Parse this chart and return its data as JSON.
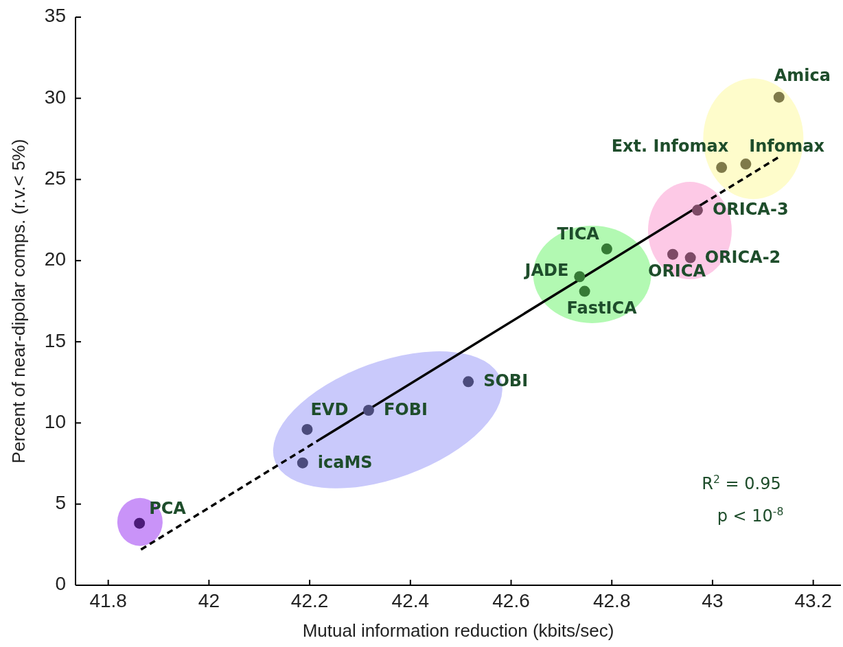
{
  "chart_data": {
    "type": "scatter",
    "xlabel": "Mutual information reduction (kbits/sec)",
    "ylabel": "Percent of near-dipolar comps. (r.v.< 5%)",
    "xlim": [
      41.735,
      43.255
    ],
    "xticks": [
      41.8,
      42,
      42.2,
      42.4,
      42.6,
      42.8,
      43,
      43.2
    ],
    "ylim": [
      0,
      35
    ],
    "yticks": [
      0,
      5,
      10,
      15,
      20,
      25,
      30,
      35
    ],
    "marker": "circle",
    "annotations": [
      "R$^{2}$ = 0.95",
      "p < 10$^{-8}$"
    ],
    "series": [
      {
        "name": "PCA",
        "color": "#4b1a78",
        "x": [
          41.862
        ],
        "values": [
          3.82
        ]
      },
      {
        "name": "EVD",
        "color": "#4b4b7c",
        "x": [
          42.195
        ],
        "values": [
          9.6
        ]
      },
      {
        "name": "FOBI",
        "color": "#4b4b7c",
        "x": [
          42.317
        ],
        "values": [
          10.78
        ]
      },
      {
        "name": "icaMS",
        "color": "#4b4b7c",
        "x": [
          42.186
        ],
        "values": [
          7.54
        ]
      },
      {
        "name": "SOBI",
        "color": "#4b4b7c",
        "x": [
          42.515
        ],
        "values": [
          12.54
        ]
      },
      {
        "name": "TICA",
        "color": "#357a35",
        "x": [
          42.79
        ],
        "values": [
          20.72
        ]
      },
      {
        "name": "JADE",
        "color": "#357a35",
        "x": [
          42.736
        ],
        "values": [
          19.01
        ]
      },
      {
        "name": "FastICA",
        "color": "#357a35",
        "x": [
          42.746
        ],
        "values": [
          18.11
        ]
      },
      {
        "name": "ORICA",
        "color": "#7d4a66",
        "x": [
          42.921
        ],
        "values": [
          20.39
        ]
      },
      {
        "name": "ORICA-2",
        "color": "#7d4a66",
        "x": [
          42.956
        ],
        "values": [
          20.18
        ]
      },
      {
        "name": "ORICA-3",
        "color": "#7d4a66",
        "x": [
          42.97
        ],
        "values": [
          23.11
        ]
      },
      {
        "name": "Ext. Infomax",
        "color": "#7f7a4a",
        "x": [
          43.018
        ],
        "values": [
          25.74
        ]
      },
      {
        "name": "Infomax",
        "color": "#7f7a4a",
        "x": [
          43.066
        ],
        "values": [
          25.95
        ]
      },
      {
        "name": "Amica",
        "color": "#7f7a4a",
        "x": [
          43.132
        ],
        "values": [
          30.07
        ]
      },
      {
        "type": "line",
        "color": "#000000",
        "line_style": "dashed",
        "marker": "none",
        "x": [
          41.865,
          42.22
        ],
        "values": [
          2.2,
          8.98
        ]
      },
      {
        "type": "line",
        "color": "#000000",
        "line_style": "solid",
        "marker": "none",
        "x": [
          42.22,
          42.98
        ],
        "values": [
          8.98,
          23.49
        ]
      },
      {
        "type": "line",
        "color": "#000000",
        "line_style": "dashed",
        "marker": "none",
        "x": [
          42.98,
          43.131
        ],
        "values": [
          23.49,
          26.37
        ]
      }
    ]
  }
}
